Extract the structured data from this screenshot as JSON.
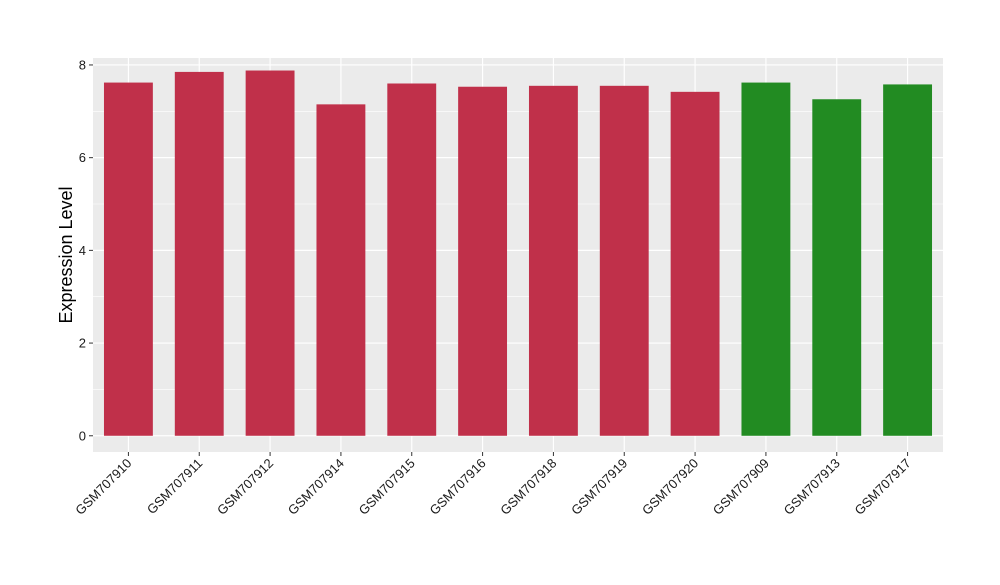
{
  "chart_data": {
    "type": "bar",
    "title": "",
    "xlabel": "",
    "ylabel": "Expression Level",
    "ylim": [
      -0.35,
      8.15
    ],
    "yticks": [
      0,
      2,
      4,
      6,
      8
    ],
    "grid": true,
    "legend": "none",
    "panel_color": "#EBEBEB",
    "gridline_color": "#FFFFFF",
    "categories": [
      "GSM707910",
      "GSM707911",
      "GSM707912",
      "GSM707914",
      "GSM707915",
      "GSM707916",
      "GSM707918",
      "GSM707919",
      "GSM707920",
      "GSM707909",
      "GSM707913",
      "GSM707917"
    ],
    "values": [
      7.62,
      7.85,
      7.88,
      7.15,
      7.6,
      7.53,
      7.55,
      7.55,
      7.42,
      7.62,
      7.26,
      7.58
    ],
    "colors": [
      "#C0304A",
      "#C0304A",
      "#C0304A",
      "#C0304A",
      "#C0304A",
      "#C0304A",
      "#C0304A",
      "#C0304A",
      "#C0304A",
      "#228B22",
      "#228B22",
      "#228B22"
    ]
  }
}
